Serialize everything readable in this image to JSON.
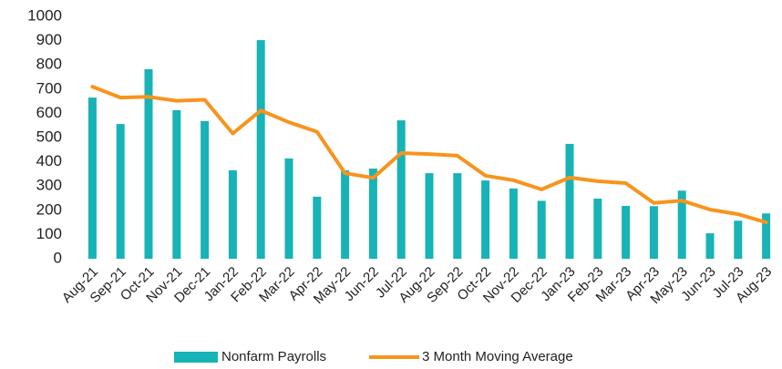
{
  "chart_data": {
    "type": "bar",
    "categories": [
      "Aug-21",
      "Sep-21",
      "Oct-21",
      "Nov-21",
      "Dec-21",
      "Jan-22",
      "Feb-22",
      "Mar-22",
      "Apr-22",
      "May-22",
      "Jun-22",
      "Jul-22",
      "Aug-22",
      "Sep-22",
      "Oct-22",
      "Nov-22",
      "Dec-22",
      "Jan-23",
      "Feb-23",
      "Mar-23",
      "Apr-23",
      "May-23",
      "Jun-23",
      "Jul-23",
      "Aug-23"
    ],
    "series": [
      {
        "name": "Nonfarm Payrolls",
        "type": "bar",
        "color": "#17b3b7",
        "values": [
          665,
          556,
          782,
          613,
          568,
          365,
          902,
          414,
          256,
          365,
          372,
          571,
          353,
          353,
          323,
          290,
          239,
          474,
          248,
          218,
          217,
          281,
          105,
          157,
          187
        ]
      },
      {
        "name": "3 Month Moving Average",
        "type": "line",
        "color": "#f7941d",
        "values": [
          710,
          665,
          668,
          652,
          656,
          517,
          612,
          563,
          524,
          353,
          334,
          436,
          432,
          425,
          343,
          324,
          286,
          335,
          320,
          312,
          230,
          240,
          203,
          184,
          150
        ]
      }
    ],
    "ylim": [
      0,
      1000
    ],
    "yticks": [
      0,
      100,
      200,
      300,
      400,
      500,
      600,
      700,
      800,
      900,
      1000
    ],
    "grid": false,
    "legend": "bottom"
  }
}
